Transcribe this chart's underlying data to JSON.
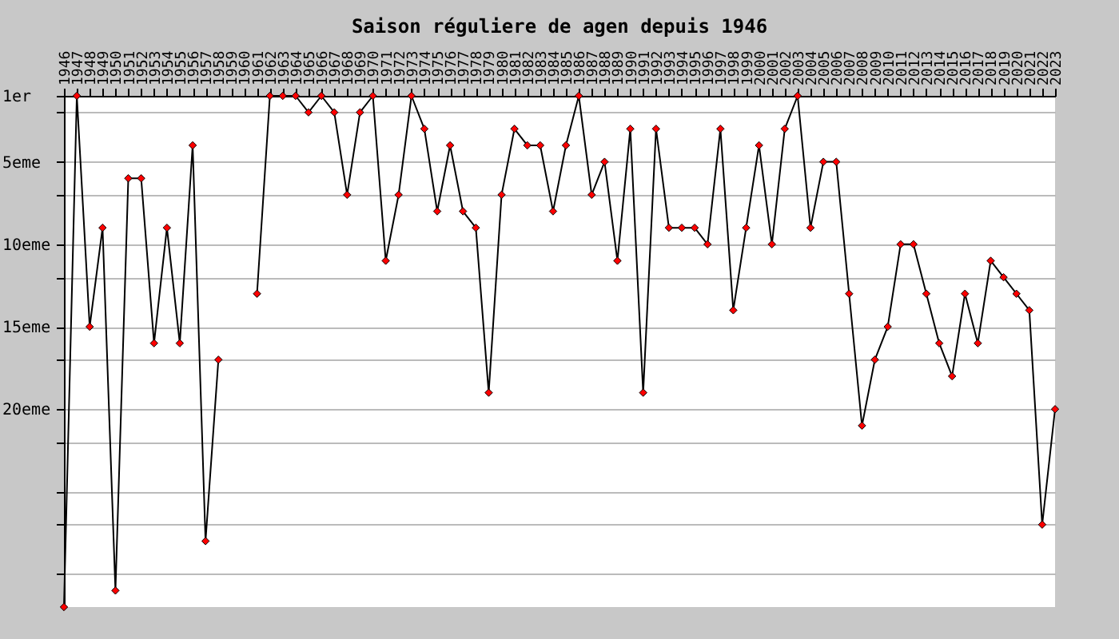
{
  "chart_data": {
    "type": "line",
    "title": "Saison réguliere de agen depuis 1946",
    "categories": [
      "1946",
      "1947",
      "1948",
      "1949",
      "1950",
      "1951",
      "1952",
      "1953",
      "1954",
      "1955",
      "1956",
      "1957",
      "1958",
      "1959",
      "1960",
      "1961",
      "1962",
      "1963",
      "1964",
      "1965",
      "1966",
      "1967",
      "1968",
      "1969",
      "1970",
      "1971",
      "1972",
      "1973",
      "1974",
      "1975",
      "1976",
      "1977",
      "1978",
      "1979",
      "1980",
      "1981",
      "1982",
      "1983",
      "1984",
      "1985",
      "1986",
      "1987",
      "1988",
      "1989",
      "1990",
      "1991",
      "1992",
      "1993",
      "1994",
      "1995",
      "1996",
      "1997",
      "1998",
      "1999",
      "2000",
      "2001",
      "2002",
      "2003",
      "2004",
      "2005",
      "2006",
      "2007",
      "2008",
      "2009",
      "2010",
      "2011",
      "2012",
      "2013",
      "2014",
      "2015",
      "2016",
      "2017",
      "2018",
      "2019",
      "2020",
      "2021",
      "2022",
      "2023"
    ],
    "series": [
      {
        "color": "#000000",
        "values": [
          32,
          1,
          15,
          9,
          31,
          6,
          6,
          16,
          9,
          16,
          4,
          28,
          17,
          null,
          null,
          13,
          1,
          1,
          1,
          2,
          1,
          2,
          7,
          2,
          1,
          11,
          7,
          1,
          3,
          8,
          4,
          8,
          9,
          19,
          7,
          3,
          4,
          4,
          8,
          4,
          1,
          7,
          5,
          11,
          3,
          19,
          3,
          9,
          9,
          9,
          10,
          3,
          14,
          9,
          4,
          10,
          3,
          1,
          9,
          5,
          5,
          13,
          21,
          17,
          15,
          10,
          10,
          13,
          16,
          18,
          13,
          16,
          11,
          12,
          13,
          14,
          27,
          20
        ]
      }
    ],
    "ylim": [
      32,
      1
    ],
    "yticks": [
      {
        "value": 1,
        "label": "1er"
      },
      {
        "value": 2,
        "label": null
      },
      {
        "value": 5,
        "label": "5eme"
      },
      {
        "value": 7,
        "label": null
      },
      {
        "value": 10,
        "label": "10eme"
      },
      {
        "value": 12,
        "label": null
      },
      {
        "value": 15,
        "label": "15eme"
      },
      {
        "value": 17,
        "label": null
      },
      {
        "value": 20,
        "label": "20eme"
      },
      {
        "value": 22,
        "label": null
      },
      {
        "value": 25,
        "label": null
      },
      {
        "value": 27,
        "label": null
      },
      {
        "value": 30,
        "label": null
      }
    ],
    "grid": "y",
    "marker": "diamond"
  }
}
